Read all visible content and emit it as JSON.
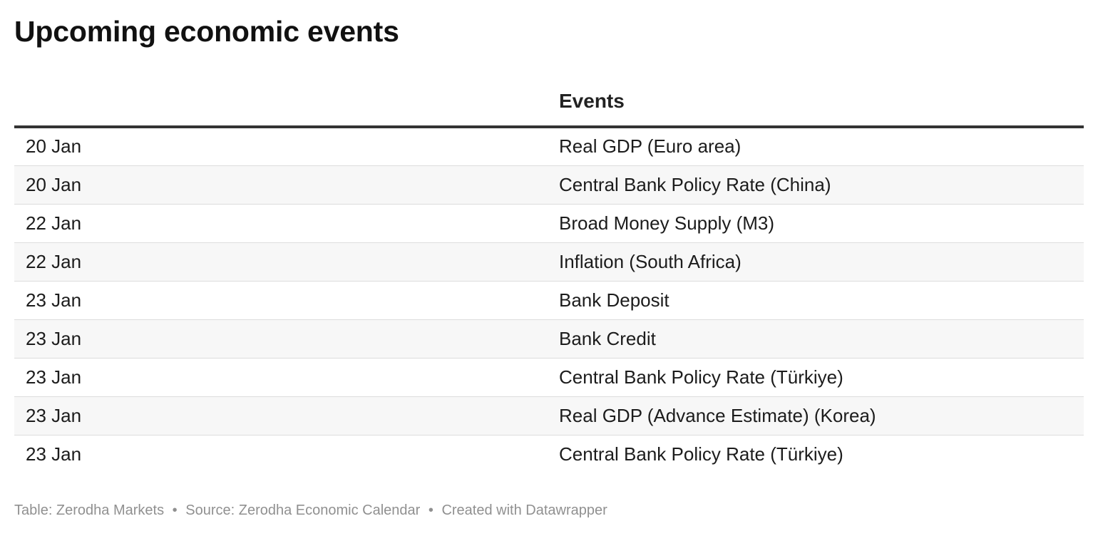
{
  "title": "Upcoming economic events",
  "chart_data": {
    "type": "table",
    "columns": [
      "",
      "Events"
    ],
    "rows": [
      [
        "20 Jan",
        "Real GDP (Euro area)"
      ],
      [
        "20 Jan",
        "Central Bank Policy Rate (China)"
      ],
      [
        "22 Jan",
        "Broad Money Supply (M3)"
      ],
      [
        "22 Jan",
        "Inflation (South Africa)"
      ],
      [
        "23 Jan",
        "Bank Deposit"
      ],
      [
        "23 Jan",
        "Bank Credit"
      ],
      [
        "23 Jan",
        "Central Bank Policy Rate (Türkiye)"
      ],
      [
        "23 Jan",
        "Real GDP (Advance Estimate) (Korea)"
      ],
      [
        "23 Jan",
        "Central Bank Policy Rate (Türkiye)"
      ]
    ]
  },
  "footer": {
    "table_credit": "Table: Zerodha Markets",
    "source": "Source: Zerodha Economic Calendar",
    "created_with": "Created with Datawrapper",
    "separator": "•"
  }
}
